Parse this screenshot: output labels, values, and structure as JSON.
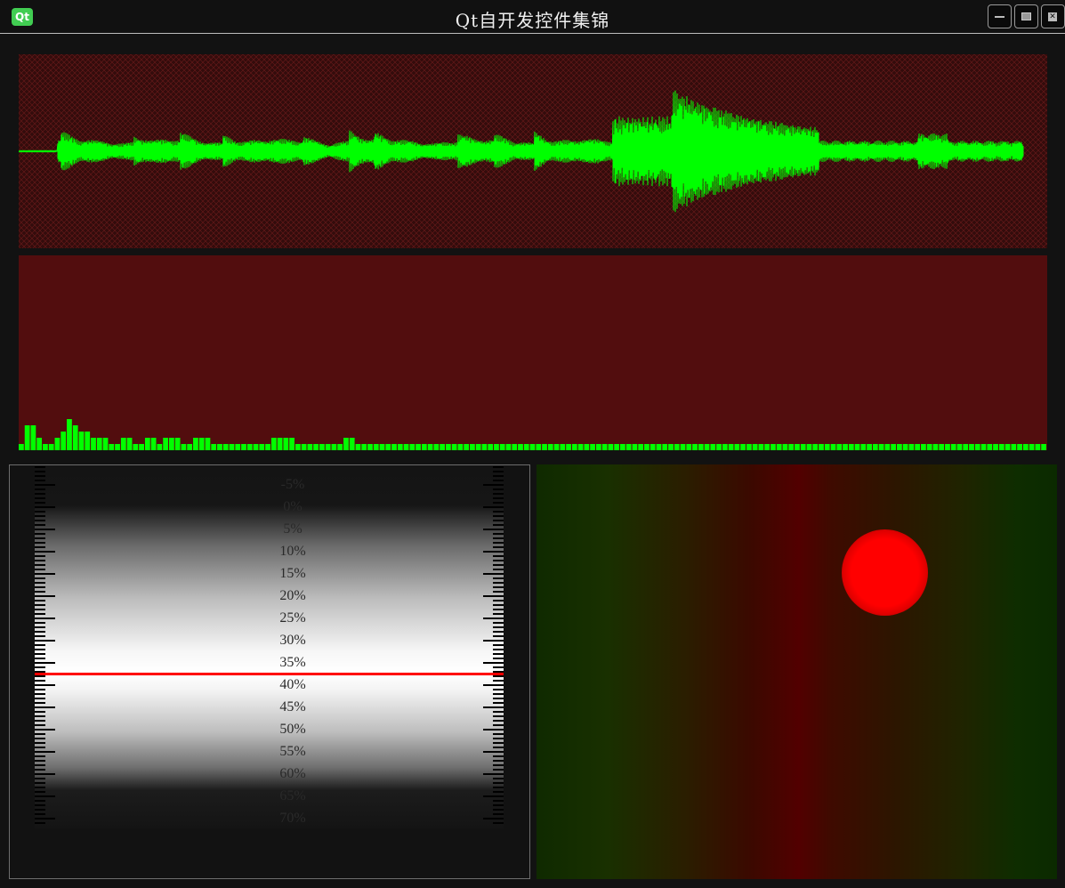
{
  "window": {
    "title": "Qt自开发控件集锦",
    "app_icon_text": "Qt",
    "buttons": [
      "minimize",
      "maximize",
      "close"
    ]
  },
  "colors": {
    "waveform": "#00ff00",
    "bars": "#00ff00",
    "wave_background": "#330c0c",
    "spectrum_background": "#520d0e",
    "ruler_indicator": "#ff0000",
    "led": "#ff0000"
  },
  "ruler": {
    "labels": [
      "-5%",
      "0%",
      "5%",
      "10%",
      "15%",
      "20%",
      "25%",
      "30%",
      "35%",
      "40%",
      "45%",
      "50%",
      "55%",
      "60%",
      "65%",
      "70%"
    ],
    "current_value_percent": 37.5
  },
  "spectrum": {
    "bar_levels": [
      1,
      4,
      4,
      2,
      1,
      1,
      2,
      3,
      5,
      4,
      3,
      3,
      2,
      2,
      2,
      1,
      1,
      2,
      2,
      1,
      1,
      2,
      2,
      1,
      2,
      2,
      2,
      1,
      1,
      2,
      2,
      2,
      1,
      1,
      1,
      1,
      1,
      1,
      1,
      1,
      1,
      1,
      2,
      2,
      2,
      2,
      1,
      1,
      1,
      1,
      1,
      1,
      1,
      1,
      2,
      2,
      1,
      1,
      1,
      1,
      1,
      1,
      1,
      1,
      1,
      1,
      1,
      1,
      1,
      1,
      1,
      1,
      1,
      1,
      1,
      1,
      1,
      1,
      1,
      1,
      1,
      1,
      1,
      1,
      1,
      1,
      1,
      1,
      1,
      1,
      1,
      1,
      1,
      1,
      1,
      1,
      1,
      1,
      1,
      1,
      1,
      1,
      1,
      1,
      1,
      1,
      1,
      1,
      1,
      1,
      1,
      1,
      1,
      1,
      1,
      1,
      1,
      1,
      1,
      1,
      1,
      1,
      1,
      1,
      1,
      1,
      1,
      1,
      1,
      1,
      1,
      1,
      1,
      1,
      1,
      1,
      1,
      1,
      1,
      1,
      1,
      1,
      1,
      1,
      1,
      1,
      1,
      1,
      1,
      1,
      1,
      1,
      1,
      1,
      1,
      1,
      1,
      1,
      1,
      1,
      1,
      1,
      1,
      1,
      1,
      1,
      1,
      1,
      1,
      1,
      1
    ]
  }
}
